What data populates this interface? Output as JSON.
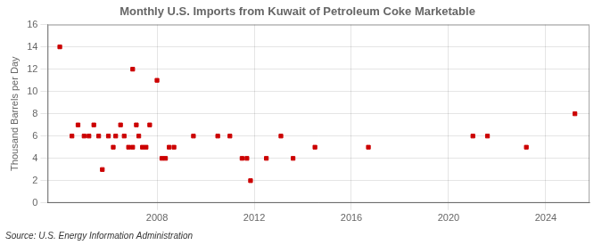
{
  "chart_data": {
    "type": "scatter",
    "title": "Monthly U.S. Imports from Kuwait of Petroleum Coke Marketable",
    "ylabel": "Thousand Barrels per Day",
    "annotation": "Source: U.S. Energy Information Administration",
    "color": "#cc0000",
    "marker": "square",
    "grid": true,
    "xlim": [
      2003.5,
      2025.8
    ],
    "xticks": [
      2008,
      2012,
      2016,
      2020,
      2024
    ],
    "ylim": [
      0,
      16
    ],
    "yticks": [
      0,
      2,
      4,
      6,
      8,
      10,
      12,
      14,
      16
    ],
    "x": [
      2004.0,
      2004.5,
      2004.75,
      2005.0,
      2005.2,
      2005.4,
      2005.6,
      2005.75,
      2006.0,
      2006.2,
      2006.3,
      2006.5,
      2006.65,
      2006.83,
      2007.0,
      2007.15,
      2007.25,
      2007.4,
      2007.55,
      2007.7,
      2007.0,
      2008.0,
      2008.2,
      2008.35,
      2008.5,
      2008.7,
      2009.5,
      2010.5,
      2011.0,
      2011.5,
      2011.7,
      2011.85,
      2012.5,
      2013.1,
      2013.6,
      2014.5,
      2016.7,
      2021.0,
      2021.6,
      2023.2,
      2025.2
    ],
    "values": [
      14,
      6,
      7,
      6,
      6,
      7,
      6,
      3,
      6,
      5,
      6,
      7,
      6,
      5,
      5,
      7,
      6,
      5,
      5,
      7,
      12,
      11,
      4,
      4,
      5,
      5,
      6,
      6,
      6,
      4,
      4,
      2,
      4,
      6,
      4,
      5,
      5,
      6,
      6,
      5,
      8
    ]
  }
}
